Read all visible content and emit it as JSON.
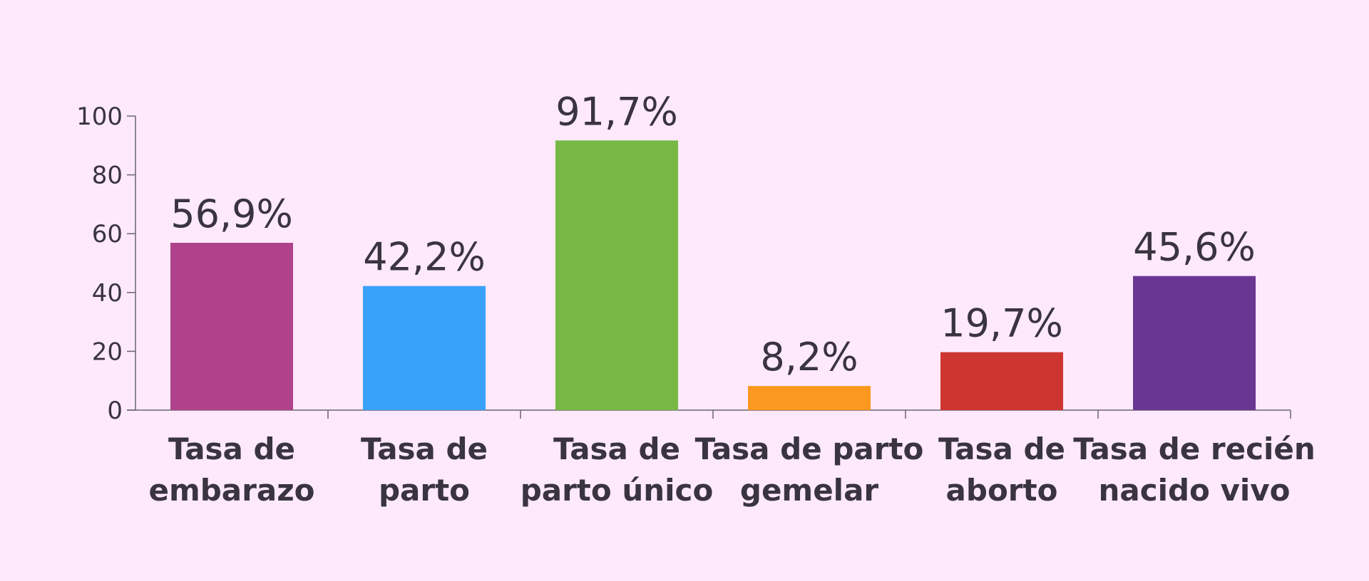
{
  "chart_data": {
    "type": "bar",
    "categories": [
      [
        "Tasa de",
        "embarazo"
      ],
      [
        "Tasa de",
        "parto"
      ],
      [
        "Tasa de",
        "parto único"
      ],
      [
        "Tasa de parto",
        "gemelar"
      ],
      [
        "Tasa de",
        "aborto"
      ],
      [
        "Tasa de recién",
        "nacido vivo"
      ]
    ],
    "values": [
      56.9,
      42.2,
      91.7,
      8.2,
      19.7,
      45.6
    ],
    "value_labels": [
      "56,9%",
      "42,2%",
      "91,7%",
      "8,2%",
      "19,7%",
      "45,6%"
    ],
    "colors": [
      "#b0428b",
      "#38a2f8",
      "#77b944",
      "#fb981f",
      "#cd3630",
      "#6a3693"
    ],
    "ylim": [
      0,
      100
    ],
    "yticks": [
      0,
      20,
      40,
      60,
      80,
      100
    ],
    "grid": false,
    "title": "",
    "xlabel": "",
    "ylabel": ""
  }
}
